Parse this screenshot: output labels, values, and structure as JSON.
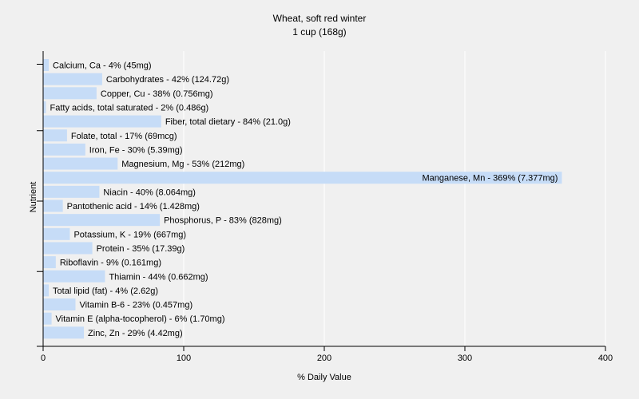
{
  "chart_data": {
    "type": "bar",
    "orientation": "horizontal",
    "title": "Wheat, soft red winter",
    "subtitle": "1 cup (168g)",
    "xlabel": "% Daily Value",
    "ylabel": "Nutrient",
    "xlim": [
      0,
      400
    ],
    "xticks": [
      0,
      100,
      200,
      300,
      400
    ],
    "grid": true,
    "bar_color": "#c6dcf7",
    "grid_color": "#ffffff",
    "background": "#f0f0f0",
    "categories": [
      "Calcium, Ca",
      "Carbohydrates",
      "Copper, Cu",
      "Fatty acids, total saturated",
      "Fiber, total dietary",
      "Folate, total",
      "Iron, Fe",
      "Magnesium, Mg",
      "Manganese, Mn",
      "Niacin",
      "Pantothenic acid",
      "Phosphorus, P",
      "Potassium, K",
      "Protein",
      "Riboflavin",
      "Thiamin",
      "Total lipid (fat)",
      "Vitamin B-6",
      "Vitamin E (alpha-tocopherol)",
      "Zinc, Zn"
    ],
    "values": [
      4,
      42,
      38,
      2,
      84,
      17,
      30,
      53,
      369,
      40,
      14,
      83,
      19,
      35,
      9,
      44,
      4,
      23,
      6,
      29
    ],
    "labels": [
      "Calcium, Ca - 4% (45mg)",
      "Carbohydrates - 42% (124.72g)",
      "Copper, Cu - 38% (0.756mg)",
      "Fatty acids, total saturated - 2% (0.486g)",
      "Fiber, total dietary - 84% (21.0g)",
      "Folate, total - 17% (69mcg)",
      "Iron, Fe - 30% (5.39mg)",
      "Magnesium, Mg - 53% (212mg)",
      "Manganese, Mn - 369% (7.377mg)",
      "Niacin - 40% (8.064mg)",
      "Pantothenic acid - 14% (1.428mg)",
      "Phosphorus, P - 83% (828mg)",
      "Potassium, K - 19% (667mg)",
      "Protein - 35% (17.39g)",
      "Riboflavin - 9% (0.161mg)",
      "Thiamin - 44% (0.662mg)",
      "Total lipid (fat) - 4% (2.62g)",
      "Vitamin B-6 - 23% (0.457mg)",
      "Vitamin E (alpha-tocopherol) - 6% (1.70mg)",
      "Zinc, Zn - 29% (4.42mg)"
    ]
  }
}
